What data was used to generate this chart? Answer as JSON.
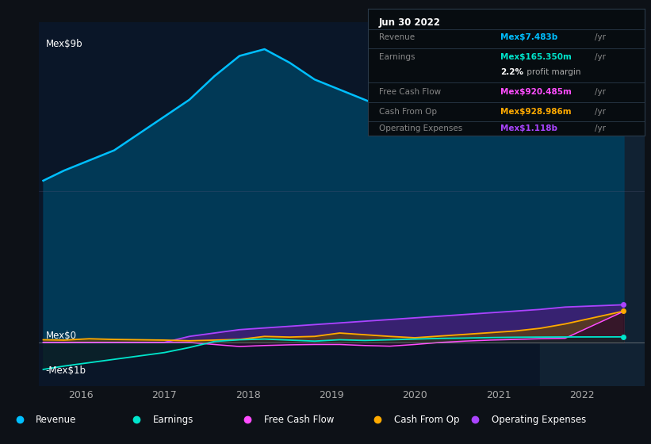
{
  "bg_color": "#0d1117",
  "plot_bg_color": "#0a1628",
  "highlight_bg_color": "#112233",
  "ylabel_top": "Mex$9b",
  "ylabel_mid": "Mex$0",
  "ylabel_bot": "-Mex$1b",
  "x_ticks": [
    2016,
    2017,
    2018,
    2019,
    2020,
    2021,
    2022
  ],
  "x_range": [
    2015.5,
    2022.75
  ],
  "y_range": [
    -1300000000.0,
    9500000000.0
  ],
  "highlight_x_start": 2021.5,
  "tooltip": {
    "date": "Jun 30 2022",
    "revenue_label": "Revenue",
    "revenue_value": "Mex$7.483b",
    "revenue_color": "#00bfff",
    "earnings_label": "Earnings",
    "earnings_value": "Mex$165.350m",
    "earnings_color": "#00e5cc",
    "margin_value": "2.2%",
    "margin_label": " profit margin",
    "fcf_label": "Free Cash Flow",
    "fcf_value": "Mex$920.485m",
    "fcf_color": "#ff4dff",
    "cashop_label": "Cash From Op",
    "cashop_value": "Mex$928.986m",
    "cashop_color": "#ffaa00",
    "opex_label": "Operating Expenses",
    "opex_value": "Mex$1.118b",
    "opex_color": "#aa44ff"
  },
  "legend": [
    {
      "label": "Revenue",
      "color": "#00bfff"
    },
    {
      "label": "Earnings",
      "color": "#00e5cc"
    },
    {
      "label": "Free Cash Flow",
      "color": "#ff4dff"
    },
    {
      "label": "Cash From Op",
      "color": "#ffaa00"
    },
    {
      "label": "Operating Expenses",
      "color": "#aa44ff"
    }
  ],
  "revenue": [
    4800000000,
    5100000000,
    5400000000,
    5700000000,
    6200000000,
    6700000000,
    7200000000,
    7900000000,
    8500000000,
    8700000000,
    8300000000,
    7800000000,
    7500000000,
    7200000000,
    6900000000,
    6700000000,
    6600000000,
    6700000000,
    6900000000,
    7100000000,
    7300000000,
    7400000000,
    7483000000
  ],
  "earnings": [
    -800000000,
    -700000000,
    -600000000,
    -500000000,
    -400000000,
    -300000000,
    -150000000,
    30000000,
    80000000,
    100000000,
    70000000,
    40000000,
    80000000,
    60000000,
    80000000,
    100000000,
    120000000,
    130000000,
    145000000,
    155000000,
    160000000,
    163000000,
    165350000
  ],
  "fcf": [
    0,
    0,
    0,
    0,
    0,
    0,
    0,
    -60000000,
    -120000000,
    -90000000,
    -70000000,
    -60000000,
    -60000000,
    -90000000,
    -110000000,
    -60000000,
    0,
    40000000,
    70000000,
    90000000,
    110000000,
    125000000,
    920485000
  ],
  "cashop": [
    80000000,
    70000000,
    110000000,
    90000000,
    80000000,
    70000000,
    50000000,
    70000000,
    90000000,
    180000000,
    160000000,
    180000000,
    280000000,
    230000000,
    180000000,
    140000000,
    190000000,
    240000000,
    290000000,
    340000000,
    420000000,
    550000000,
    928986000
  ],
  "opex": [
    0,
    0,
    0,
    0,
    0,
    0,
    180000000,
    280000000,
    380000000,
    430000000,
    480000000,
    530000000,
    580000000,
    630000000,
    680000000,
    730000000,
    780000000,
    830000000,
    880000000,
    930000000,
    980000000,
    1050000000,
    1118000000
  ],
  "time_x": [
    2015.55,
    2015.8,
    2016.1,
    2016.4,
    2016.7,
    2017.0,
    2017.3,
    2017.6,
    2017.9,
    2018.2,
    2018.5,
    2018.8,
    2019.1,
    2019.4,
    2019.7,
    2020.0,
    2020.3,
    2020.6,
    2020.9,
    2021.2,
    2021.5,
    2021.8,
    2022.5
  ]
}
